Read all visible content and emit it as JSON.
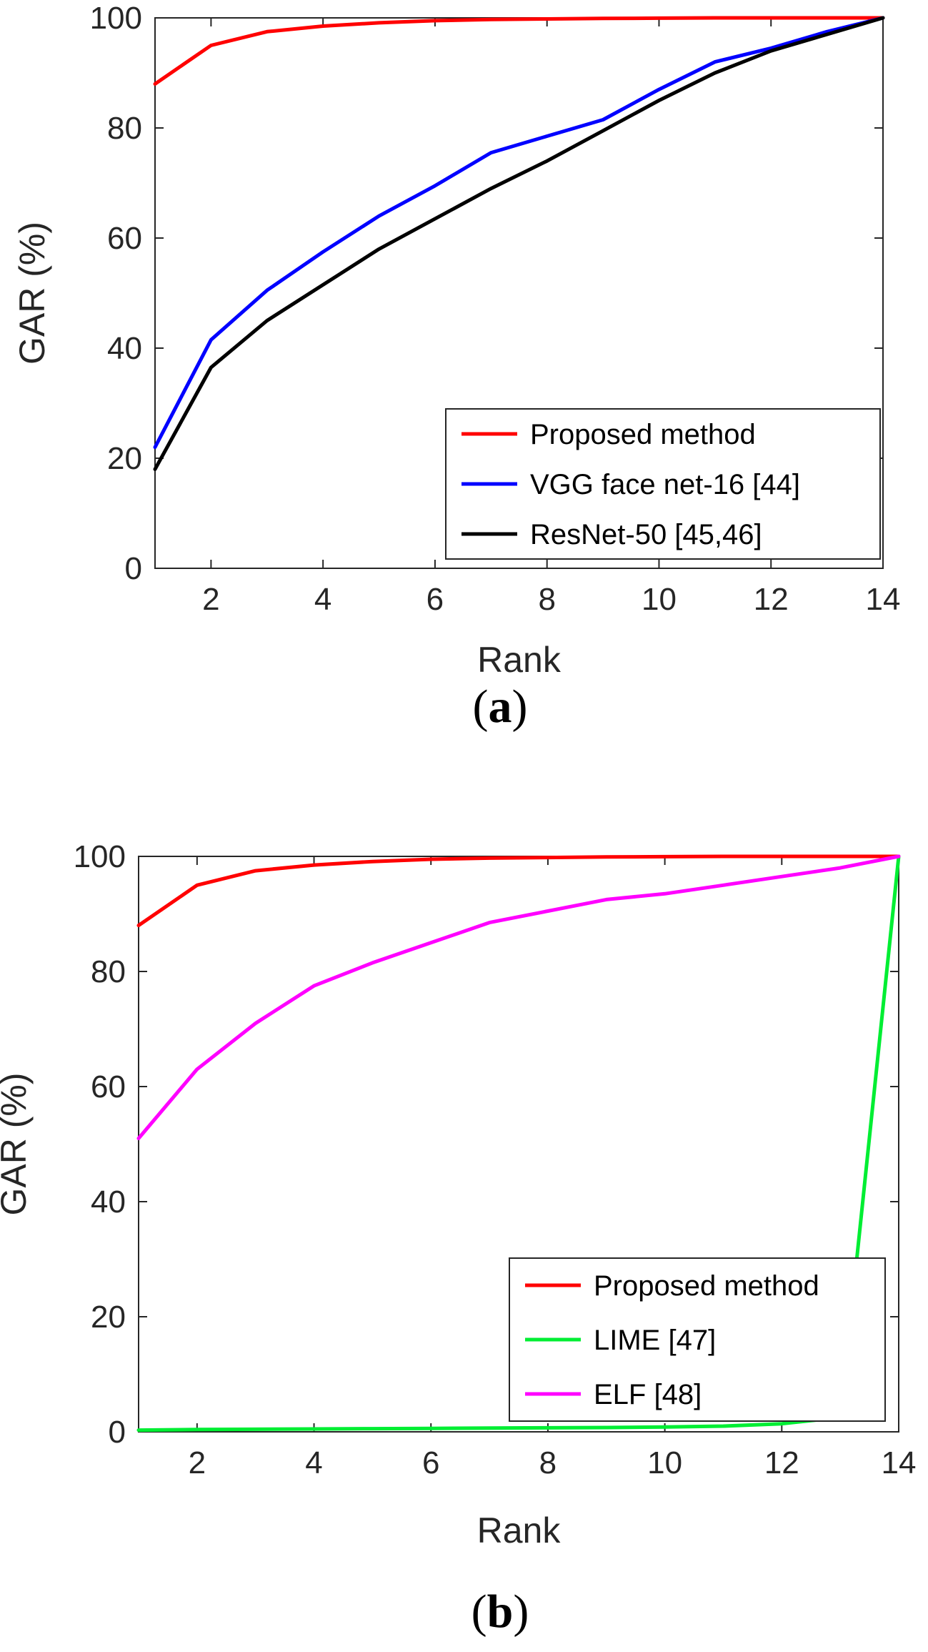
{
  "chart_data": [
    {
      "type": "line",
      "caption_letter": "a",
      "xlabel": "Rank",
      "ylabel": "GAR (%)",
      "xlim": [
        1,
        14
      ],
      "ylim": [
        0,
        100
      ],
      "xticks": [
        2,
        4,
        6,
        8,
        10,
        12,
        14
      ],
      "yticks": [
        0,
        20,
        40,
        60,
        80,
        100
      ],
      "legend_position": "bottom-right",
      "x": [
        1,
        2,
        3,
        4,
        5,
        6,
        7,
        8,
        9,
        10,
        11,
        12,
        13,
        14
      ],
      "series": [
        {
          "name": "Proposed method",
          "color": "#ff0000",
          "values": [
            88,
            95,
            97.5,
            98.5,
            99.1,
            99.5,
            99.7,
            99.8,
            99.9,
            99.95,
            100,
            100,
            100,
            100
          ]
        },
        {
          "name": "VGG face net-16 [44]",
          "color": "#0000ff",
          "values": [
            22,
            41.5,
            50.5,
            57.5,
            64,
            69.5,
            75.5,
            78.5,
            81.5,
            87,
            92,
            94.5,
            97.5,
            100
          ]
        },
        {
          "name": "ResNet-50 [45,46]",
          "color": "#000000",
          "values": [
            18,
            36.5,
            45,
            51.5,
            58,
            63.5,
            69,
            74,
            79.5,
            85,
            90,
            94,
            97,
            100
          ]
        }
      ]
    },
    {
      "type": "line",
      "caption_letter": "b",
      "xlabel": "Rank",
      "ylabel": "GAR (%)",
      "xlim": [
        1,
        14
      ],
      "ylim": [
        0,
        100
      ],
      "xticks": [
        2,
        4,
        6,
        8,
        10,
        12,
        14
      ],
      "yticks": [
        0,
        20,
        40,
        60,
        80,
        100
      ],
      "legend_position": "bottom-right",
      "x": [
        1,
        2,
        3,
        4,
        5,
        6,
        7,
        8,
        9,
        10,
        11,
        12,
        13,
        14
      ],
      "series": [
        {
          "name": "Proposed method",
          "color": "#ff0000",
          "values": [
            88,
            95,
            97.5,
            98.5,
            99.1,
            99.5,
            99.7,
            99.8,
            99.9,
            99.95,
            100,
            100,
            100,
            100
          ]
        },
        {
          "name": "LIME [47]",
          "color": "#00ee33",
          "values": [
            0.3,
            0.4,
            0.45,
            0.5,
            0.55,
            0.6,
            0.65,
            0.7,
            0.75,
            0.85,
            1.0,
            1.4,
            2.5,
            100
          ]
        },
        {
          "name": "ELF [48]",
          "color": "#ff00ff",
          "values": [
            51,
            63,
            71,
            77.5,
            81.5,
            85,
            88.5,
            90.5,
            92.5,
            93.5,
            95,
            96.5,
            98,
            100
          ]
        }
      ]
    }
  ]
}
